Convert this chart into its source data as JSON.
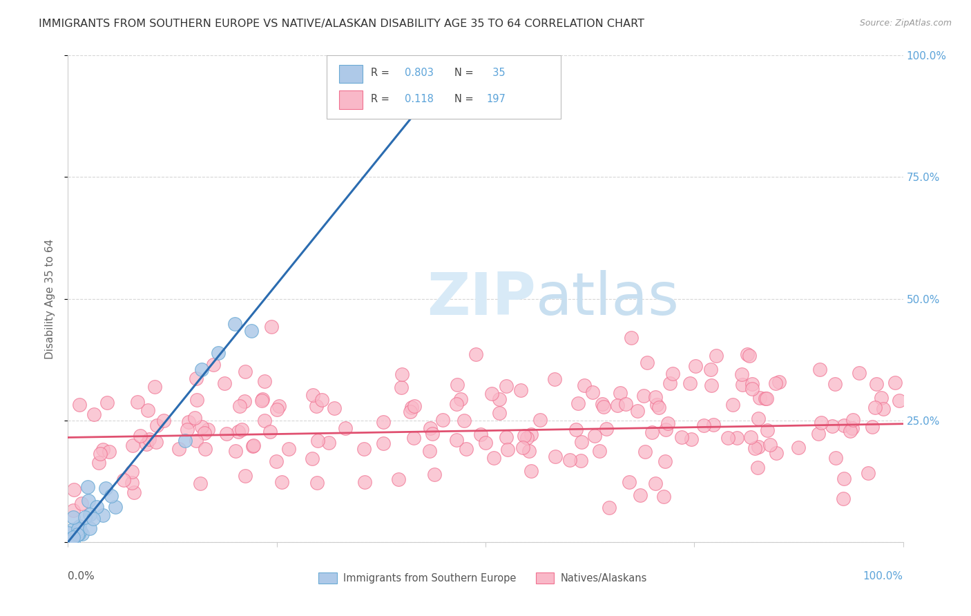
{
  "title": "IMMIGRANTS FROM SOUTHERN EUROPE VS NATIVE/ALASKAN DISABILITY AGE 35 TO 64 CORRELATION CHART",
  "source": "Source: ZipAtlas.com",
  "ylabel": "Disability Age 35 to 64",
  "y_ticks": [
    0.0,
    0.25,
    0.5,
    0.75,
    1.0
  ],
  "y_tick_labels_right": [
    "",
    "25.0%",
    "50.0%",
    "75.0%",
    "100.0%"
  ],
  "blue_R": 0.803,
  "blue_N": 35,
  "pink_R": 0.118,
  "pink_N": 197,
  "blue_fill_color": "#aec9e8",
  "blue_edge_color": "#6aaad4",
  "pink_fill_color": "#f9b8c8",
  "pink_edge_color": "#f07090",
  "blue_line_color": "#2b6cb0",
  "pink_line_color": "#e05070",
  "blue_slope": 2.12,
  "blue_intercept": 0.0,
  "pink_slope": 0.028,
  "pink_intercept": 0.215,
  "background_color": "#ffffff",
  "legend_label_blue": "Immigrants from Southern Europe",
  "legend_label_pink": "Natives/Alaskans",
  "grid_color": "#cccccc",
  "right_tick_color": "#5ba3d9",
  "watermark_color": "#d8eaf7",
  "title_fontsize": 11.5,
  "blue_seed": 12,
  "pink_seed": 99
}
